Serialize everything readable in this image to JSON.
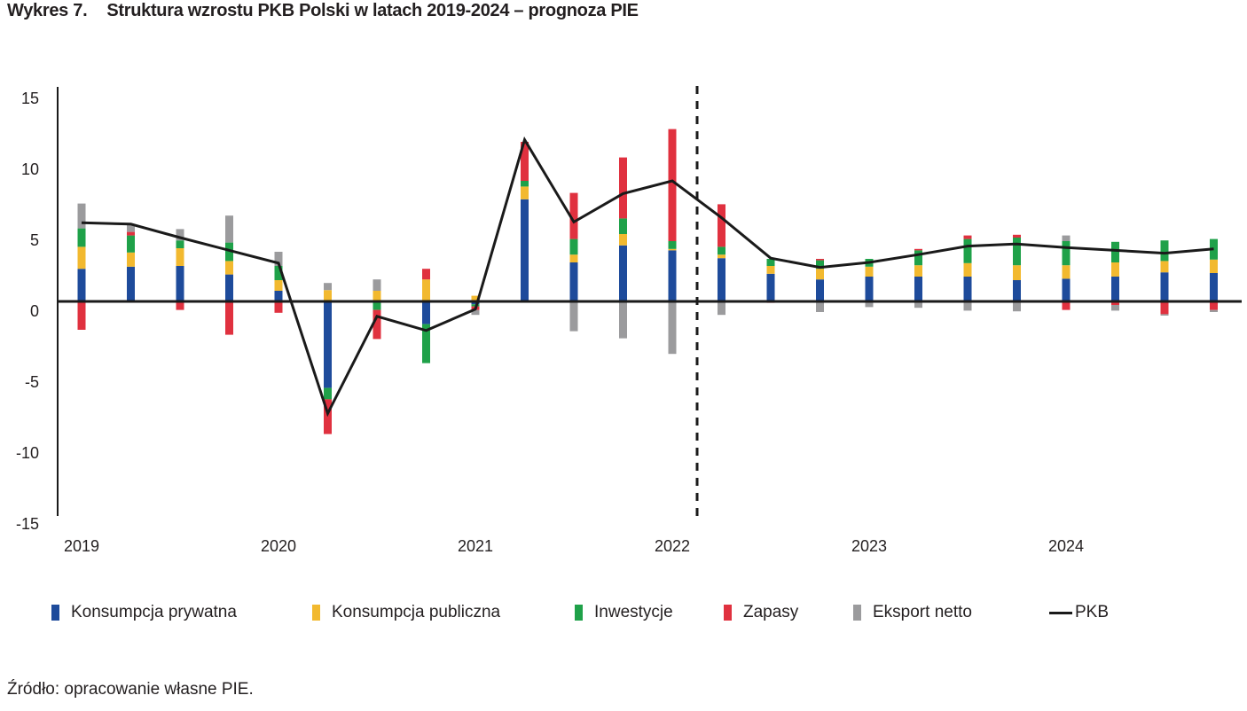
{
  "header": {
    "figure_number": "Wykres 7.",
    "title": "Struktura wzrostu PKB Polski w latach 2019-2024 – prognoza PIE"
  },
  "source": "Źródło: opracowanie własne PIE.",
  "chart_data": {
    "type": "bar",
    "subtype": "stacked-bar-with-line",
    "title": "Struktura wzrostu PKB Polski w latach 2019-2024 – prognoza PIE",
    "xlabel": "",
    "ylabel": "",
    "ylim": [
      -15,
      15
    ],
    "yticks": [
      15,
      10,
      5,
      0,
      -5,
      -10,
      -15
    ],
    "year_labels": [
      "2019",
      "2020",
      "2021",
      "2022",
      "2023",
      "2024"
    ],
    "categories": [
      "2019Q1",
      "2019Q2",
      "2019Q3",
      "2019Q4",
      "2020Q1",
      "2020Q2",
      "2020Q3",
      "2020Q4",
      "2021Q1",
      "2021Q2",
      "2021Q3",
      "2021Q4",
      "2022Q1",
      "2022Q2",
      "2022Q3",
      "2022Q4",
      "2023Q1",
      "2023Q2",
      "2023Q3",
      "2023Q4",
      "2024Q1",
      "2024Q2",
      "2024Q3",
      "2024Q4"
    ],
    "forecast_start_after": "2022Q1",
    "grid": false,
    "legend_position": "bottom",
    "series": [
      {
        "name": "Konsumpcja prywatna",
        "kind": "bar",
        "color": "#1E4B9B",
        "values": [
          2.3,
          2.45,
          2.5,
          1.9,
          0.75,
          -6.1,
          0,
          -1.6,
          -0.2,
          7.2,
          2.75,
          3.95,
          3.6,
          3.05,
          1.95,
          1.55,
          1.75,
          1.75,
          1.75,
          1.5,
          1.6,
          1.75,
          2.05,
          2.0
        ]
      },
      {
        "name": "Konsumpcja publiczna",
        "kind": "bar",
        "color": "#F2B92F",
        "values": [
          1.55,
          1.0,
          1.25,
          0.95,
          0.75,
          0.8,
          0.75,
          1.55,
          0.4,
          0.9,
          0.55,
          0.8,
          0.1,
          0.25,
          0.55,
          0.75,
          0.7,
          0.8,
          0.95,
          1.05,
          0.95,
          1.0,
          0.8,
          0.95
        ]
      },
      {
        "name": "Inwestycje",
        "kind": "bar",
        "color": "#1FA149",
        "values": [
          1.3,
          1.2,
          0.55,
          1.3,
          1.0,
          -0.8,
          -0.6,
          -2.75,
          -0.15,
          0.4,
          1.1,
          1.1,
          0.55,
          0.55,
          0.5,
          0.6,
          0.55,
          1.05,
          1.7,
          1.95,
          1.7,
          1.45,
          1.45,
          1.45
        ]
      },
      {
        "name": "Zapasy",
        "kind": "bar",
        "color": "#E0313F",
        "values": [
          -2.0,
          0.25,
          -0.6,
          -2.35,
          -0.8,
          -2.45,
          -2.05,
          0.75,
          -0.25,
          2.75,
          3.25,
          4.3,
          7.9,
          3.0,
          -0.1,
          0.1,
          0,
          0.1,
          0.25,
          0.2,
          -0.6,
          -0.25,
          -0.9,
          -0.6
        ]
      },
      {
        "name": "Eksport netto",
        "kind": "bar",
        "color": "#9B9B9D",
        "values": [
          1.75,
          0.55,
          0.8,
          1.9,
          1.0,
          0.5,
          0.8,
          0,
          -0.35,
          0,
          -2.1,
          -2.6,
          -3.7,
          -0.95,
          0,
          -0.75,
          -0.4,
          -0.45,
          -0.65,
          -0.7,
          0.4,
          -0.4,
          -0.1,
          -0.15
        ]
      },
      {
        "name": "PKB",
        "kind": "line",
        "color": "#1A1A1A",
        "values": [
          5.55,
          5.45,
          4.5,
          3.6,
          2.7,
          -7.9,
          -1.05,
          -2.05,
          -0.55,
          11.4,
          5.6,
          7.6,
          8.5,
          5.9,
          3.05,
          2.4,
          2.75,
          3.3,
          3.9,
          4.05,
          3.8,
          3.6,
          3.4,
          3.7
        ]
      }
    ]
  }
}
